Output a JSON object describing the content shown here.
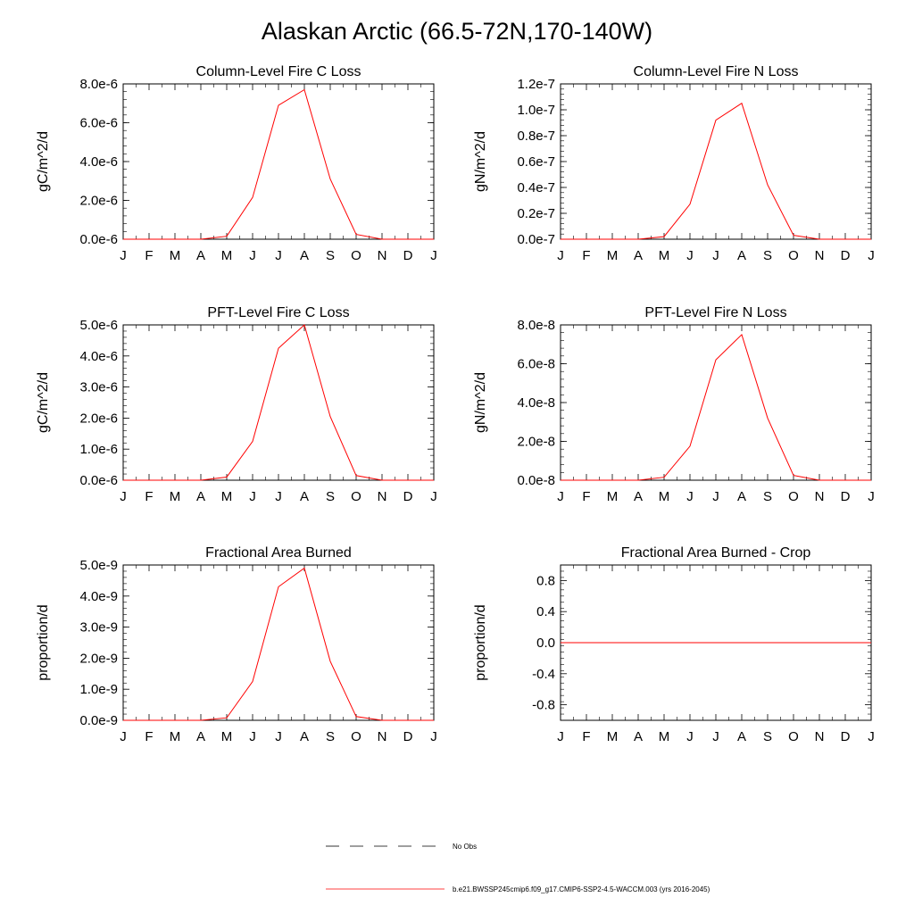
{
  "figure": {
    "title": "Alaskan Arctic (66.5-72N,170-140W)"
  },
  "legend": {
    "entries": [
      {
        "label": "No Obs",
        "style": "dashed",
        "color": "#000000"
      },
      {
        "label": "b.e21.BWSSP245cmip6.f09_g17.CMIP6-SSP2-4.5-WACCM.003 (yrs 2016-2045)",
        "style": "solid",
        "color": "#ff0000"
      }
    ]
  },
  "chart_data": [
    {
      "type": "line",
      "title": "Column-Level Fire C Loss",
      "ylabel": "gC/m^2/d",
      "categories": [
        "J",
        "F",
        "M",
        "A",
        "M",
        "J",
        "J",
        "A",
        "S",
        "O",
        "N",
        "D",
        "J"
      ],
      "ylim": [
        0,
        8e-06
      ],
      "yticks": [
        0,
        2e-06,
        4e-06,
        6e-06,
        8e-06
      ],
      "ytick_labels": [
        "0.0e-6",
        "2.0e-6",
        "4.0e-6",
        "6.0e-6",
        "8.0e-6"
      ],
      "series": [
        {
          "color": "#ff0000",
          "values": [
            0,
            0,
            0,
            0,
            1.5e-07,
            2.15e-06,
            6.9e-06,
            7.7e-06,
            3.1e-06,
            2.5e-07,
            0,
            0,
            0
          ]
        }
      ]
    },
    {
      "type": "line",
      "title": "Column-Level Fire N Loss",
      "ylabel": "gN/m^2/d",
      "categories": [
        "J",
        "F",
        "M",
        "A",
        "M",
        "J",
        "J",
        "A",
        "S",
        "O",
        "N",
        "D",
        "J"
      ],
      "ylim": [
        0,
        1.2e-07
      ],
      "yticks": [
        0,
        2e-08,
        4e-08,
        6e-08,
        8e-08,
        1e-07,
        1.2e-07
      ],
      "ytick_labels": [
        "0.0e-7",
        "0.2e-7",
        "0.4e-7",
        "0.6e-7",
        "0.8e-7",
        "1.0e-7",
        "1.2e-7"
      ],
      "series": [
        {
          "color": "#ff0000",
          "values": [
            0,
            0,
            0,
            0,
            2e-09,
            2.7e-08,
            9.2e-08,
            1.05e-07,
            4.2e-08,
            3e-09,
            0,
            0,
            0
          ]
        }
      ]
    },
    {
      "type": "line",
      "title": "PFT-Level Fire C Loss",
      "ylabel": "gC/m^2/d",
      "categories": [
        "J",
        "F",
        "M",
        "A",
        "M",
        "J",
        "J",
        "A",
        "S",
        "O",
        "N",
        "D",
        "J"
      ],
      "ylim": [
        0,
        5e-06
      ],
      "yticks": [
        0,
        1e-06,
        2e-06,
        3e-06,
        4e-06,
        5e-06
      ],
      "ytick_labels": [
        "0.0e-6",
        "1.0e-6",
        "2.0e-6",
        "3.0e-6",
        "4.0e-6",
        "5.0e-6"
      ],
      "series": [
        {
          "color": "#ff0000",
          "values": [
            0,
            0,
            0,
            0,
            1e-07,
            1.25e-06,
            4.25e-06,
            5e-06,
            2.05e-06,
            1.5e-07,
            0,
            0,
            0
          ]
        }
      ]
    },
    {
      "type": "line",
      "title": "PFT-Level Fire N Loss",
      "ylabel": "gN/m^2/d",
      "categories": [
        "J",
        "F",
        "M",
        "A",
        "M",
        "J",
        "J",
        "A",
        "S",
        "O",
        "N",
        "D",
        "J"
      ],
      "ylim": [
        0,
        8e-08
      ],
      "yticks": [
        0,
        2e-08,
        4e-08,
        6e-08,
        8e-08
      ],
      "ytick_labels": [
        "0.0e-8",
        "2.0e-8",
        "4.0e-8",
        "6.0e-8",
        "8.0e-8"
      ],
      "series": [
        {
          "color": "#ff0000",
          "values": [
            0,
            0,
            0,
            0,
            1.5e-09,
            1.75e-08,
            6.2e-08,
            7.5e-08,
            3.2e-08,
            2.5e-09,
            0,
            0,
            0
          ]
        }
      ]
    },
    {
      "type": "line",
      "title": "Fractional Area Burned",
      "ylabel": "proportion/d",
      "categories": [
        "J",
        "F",
        "M",
        "A",
        "M",
        "J",
        "J",
        "A",
        "S",
        "O",
        "N",
        "D",
        "J"
      ],
      "ylim": [
        0,
        5e-09
      ],
      "yticks": [
        0,
        1e-09,
        2e-09,
        3e-09,
        4e-09,
        5e-09
      ],
      "ytick_labels": [
        "0.0e-9",
        "1.0e-9",
        "2.0e-9",
        "3.0e-9",
        "4.0e-9",
        "5.0e-9"
      ],
      "series": [
        {
          "color": "#ff0000",
          "values": [
            0,
            0,
            0,
            0,
            8e-11,
            1.25e-09,
            4.3e-09,
            4.9e-09,
            1.9e-09,
            1.2e-10,
            0,
            0,
            0
          ]
        }
      ]
    },
    {
      "type": "line",
      "title": "Fractional Area Burned - Crop",
      "ylabel": "proportion/d",
      "categories": [
        "J",
        "F",
        "M",
        "A",
        "M",
        "J",
        "J",
        "A",
        "S",
        "O",
        "N",
        "D",
        "J"
      ],
      "ylim": [
        -1.0,
        1.0
      ],
      "yticks": [
        -0.8,
        -0.4,
        0.0,
        0.4,
        0.8
      ],
      "ytick_labels": [
        "-0.8",
        "-0.4",
        "0.0",
        "0.4",
        "0.8"
      ],
      "series": [
        {
          "color": "#ff0000",
          "values": [
            0,
            0,
            0,
            0,
            0,
            0,
            0,
            0,
            0,
            0,
            0,
            0,
            0
          ]
        }
      ]
    }
  ]
}
